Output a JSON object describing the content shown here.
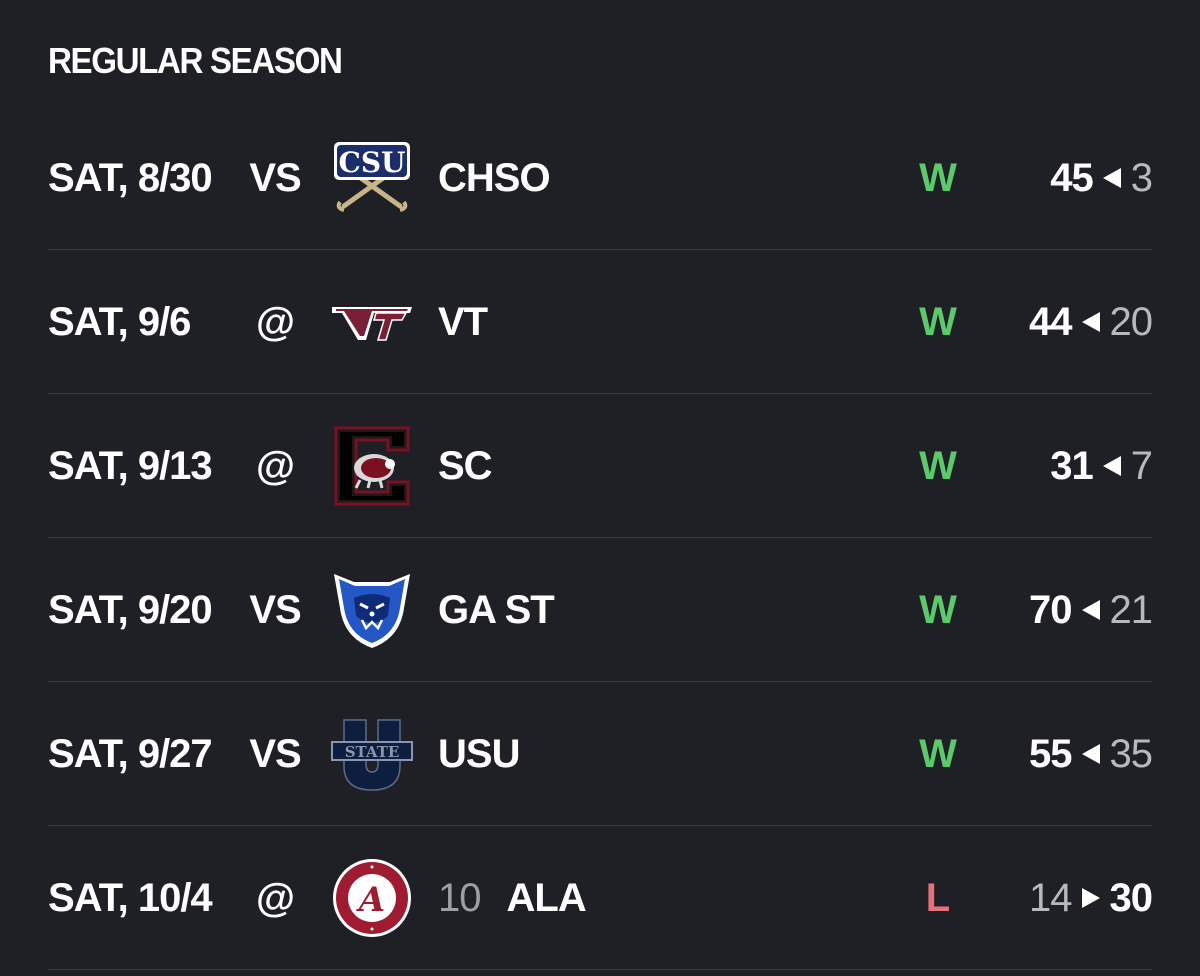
{
  "section": {
    "title": "REGULAR SEASON"
  },
  "colors": {
    "win": "#5cc96a",
    "loss": "#e5727a",
    "background": "#1f2026"
  },
  "games": [
    {
      "date": "SAT, 8/30",
      "home_away": "VS",
      "logo": "chso-logo-icon",
      "rank": "",
      "opponent": "CHSO",
      "result": "W",
      "team_score": "45",
      "opp_score": "3"
    },
    {
      "date": "SAT, 9/6",
      "home_away": "@",
      "logo": "vt-logo-icon",
      "rank": "",
      "opponent": "VT",
      "result": "W",
      "team_score": "44",
      "opp_score": "20"
    },
    {
      "date": "SAT, 9/13",
      "home_away": "@",
      "logo": "sc-logo-icon",
      "rank": "",
      "opponent": "SC",
      "result": "W",
      "team_score": "31",
      "opp_score": "7"
    },
    {
      "date": "SAT, 9/20",
      "home_away": "VS",
      "logo": "gast-logo-icon",
      "rank": "",
      "opponent": "GA ST",
      "result": "W",
      "team_score": "70",
      "opp_score": "21"
    },
    {
      "date": "SAT, 9/27",
      "home_away": "VS",
      "logo": "usu-logo-icon",
      "rank": "",
      "opponent": "USU",
      "result": "W",
      "team_score": "55",
      "opp_score": "35"
    },
    {
      "date": "SAT, 10/4",
      "home_away": "@",
      "logo": "ala-logo-icon",
      "rank": "10",
      "opponent": "ALA",
      "result": "L",
      "team_score": "14",
      "opp_score": "30"
    }
  ]
}
